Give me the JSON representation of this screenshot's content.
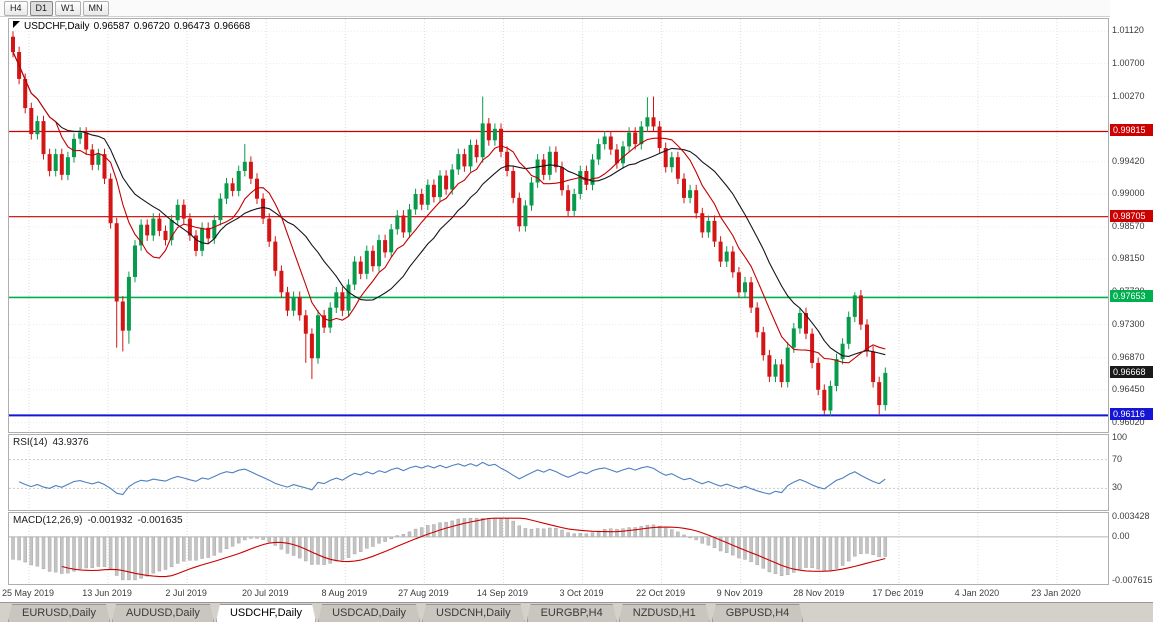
{
  "toolbar": {
    "timeframes": [
      {
        "label": "H4",
        "active": false
      },
      {
        "label": "D1",
        "active": true
      },
      {
        "label": "W1",
        "active": false
      },
      {
        "label": "MN",
        "active": false
      }
    ]
  },
  "price_chart": {
    "symbol": "USDCHF,Daily",
    "o": "0.96587",
    "h": "0.96720",
    "l": "0.96473",
    "c": "0.96668"
  },
  "price_axis": {
    "ticks": [
      "1.01120",
      "1.00700",
      "1.00270",
      "0.99420",
      "0.99000",
      "0.98570",
      "0.98150",
      "0.97730",
      "0.97300",
      "0.96870",
      "0.96450",
      "0.96020"
    ],
    "current_price": {
      "label": "0.96668",
      "price": 0.96668,
      "color": "#1a1a1a"
    }
  },
  "levels": [
    {
      "label": "0.99815",
      "price": 0.99815,
      "color": "#cc0000",
      "width": 1.2
    },
    {
      "label": "0.98705",
      "price": 0.98705,
      "color": "#cc0000",
      "width": 1.2
    },
    {
      "label": "0.97653",
      "price": 0.97653,
      "color": "#00b050",
      "width": 1.6
    },
    {
      "label": "0.96116",
      "price": 0.96116,
      "color": "#1515d6",
      "width": 2
    }
  ],
  "x_axis": {
    "labels": [
      "25 May 2019",
      "13 Jun 2019",
      "2 Jul 2019",
      "20 Jul 2019",
      "8 Aug 2019",
      "27 Aug 2019",
      "14 Sep 2019",
      "3 Oct 2019",
      "22 Oct 2019",
      "9 Nov 2019",
      "28 Nov 2019",
      "17 Dec 2019",
      "4 Jan 2020",
      "23 Jan 2020"
    ]
  },
  "rsi": {
    "name": "RSI(14)",
    "value": "43.9376",
    "axis_labels": [
      {
        "text": "100",
        "level": 100
      },
      {
        "text": "70",
        "level": 70
      },
      {
        "text": "30",
        "level": 30
      }
    ],
    "levels": [
      70,
      30
    ],
    "color": "#4e7fc1"
  },
  "macd": {
    "name": "MACD(12,26,9)",
    "value_main": "-0.001932",
    "value_signal": "-0.001635",
    "axis_labels": [
      {
        "text": "0.003428",
        "value": 0.003428
      },
      {
        "text": "0.00",
        "value": 0.0
      },
      {
        "text": "-0.007615",
        "value": -0.007615
      }
    ],
    "range": [
      -0.007615,
      0.003428
    ],
    "bar_color": "#c4c4c4",
    "bar_stroke": "#a9a9a9",
    "signal_color": "#cc0000"
  },
  "tabs": [
    {
      "label": "EURUSD,Daily",
      "active": false
    },
    {
      "label": "AUDUSD,Daily",
      "active": false
    },
    {
      "label": "USDCHF,Daily",
      "active": true
    },
    {
      "label": "USDCAD,Daily",
      "active": false
    },
    {
      "label": "USDCNH,Daily",
      "active": false
    },
    {
      "label": "EURGBP,H4",
      "active": false
    },
    {
      "label": "NZDUSD,H1",
      "active": false
    },
    {
      "label": "GBPUSD,H4",
      "active": false
    }
  ],
  "chart_data": {
    "type": "candlestick",
    "symbol": "USDCHF",
    "timeframe": "Daily",
    "title": "USDCHF,Daily",
    "ohlc_current": {
      "open": 0.96587,
      "high": 0.9672,
      "low": 0.96473,
      "close": 0.96668
    },
    "ylim": [
      0.959,
      1.0128
    ],
    "x_dates_shown": [
      "25 May 2019",
      "13 Jun 2019",
      "2 Jul 2019",
      "20 Jul 2019",
      "8 Aug 2019",
      "27 Aug 2019",
      "14 Sep 2019",
      "3 Oct 2019",
      "22 Oct 2019",
      "9 Nov 2019",
      "28 Nov 2019",
      "17 Dec 2019",
      "4 Jan 2020",
      "23 Jan 2020"
    ],
    "first_open": 1.0105,
    "default_wick": 0.0007,
    "closes": [
      1.0085,
      1.005,
      1.0012,
      0.9978,
      0.9995,
      0.9952,
      0.993,
      0.9952,
      0.9925,
      0.9948,
      0.9972,
      0.998,
      0.9958,
      0.9938,
      0.9952,
      0.992,
      0.9862,
      0.976,
      0.9722,
      0.9792,
      0.9833,
      0.986,
      0.9846,
      0.9868,
      0.9852,
      0.984,
      0.9866,
      0.9886,
      0.9868,
      0.9846,
      0.9826,
      0.9856,
      0.9842,
      0.9866,
      0.9894,
      0.9914,
      0.9904,
      0.993,
      0.9942,
      0.992,
      0.9894,
      0.9868,
      0.9838,
      0.98,
      0.9772,
      0.9748,
      0.9766,
      0.9742,
      0.9718,
      0.9686,
      0.9742,
      0.9726,
      0.9752,
      0.9772,
      0.9748,
      0.9782,
      0.9812,
      0.9796,
      0.9826,
      0.9806,
      0.984,
      0.9824,
      0.9854,
      0.9872,
      0.985,
      0.988,
      0.99,
      0.9886,
      0.9912,
      0.9896,
      0.9924,
      0.9906,
      0.9932,
      0.9952,
      0.9936,
      0.9964,
      0.9948,
      0.9992,
      0.997,
      0.9985,
      0.9955,
      0.993,
      0.9895,
      0.9858,
      0.9885,
      0.9915,
      0.9945,
      0.9925,
      0.9955,
      0.9935,
      0.9905,
      0.9878,
      0.99,
      0.993,
      0.9912,
      0.9945,
      0.9965,
      0.9975,
      0.9958,
      0.994,
      0.9962,
      0.998,
      0.9965,
      0.9988,
      1.0,
      0.9988,
      0.996,
      0.9935,
      0.9948,
      0.992,
      0.9895,
      0.9905,
      0.9875,
      0.985,
      0.9865,
      0.9838,
      0.9812,
      0.9825,
      0.9798,
      0.9772,
      0.9785,
      0.9752,
      0.972,
      0.969,
      0.9662,
      0.9678,
      0.9655,
      0.97,
      0.9725,
      0.9745,
      0.9718,
      0.968,
      0.9645,
      0.9618,
      0.965,
      0.9685,
      0.9705,
      0.974,
      0.9768,
      0.973,
      0.9695,
      0.9655,
      0.9625,
      0.9667
    ],
    "extremes": {
      "0": {
        "h": 1.0112
      },
      "17": {
        "l": 0.97
      },
      "18": {
        "l": 0.9695
      },
      "19": {
        "l": 0.9705
      },
      "38": {
        "h": 0.9965
      },
      "48": {
        "l": 0.968
      },
      "49": {
        "l": 0.9659
      },
      "77": {
        "h": 1.0027
      },
      "104": {
        "h": 1.0026
      },
      "105": {
        "h": 1.0027
      },
      "133": {
        "l": 0.9613
      },
      "138": {
        "h": 0.9772
      },
      "142": {
        "l": 0.9613
      }
    },
    "bull_color": "#089b4c",
    "bear_color": "#d41515",
    "ma_fast": {
      "period": 8,
      "color": "#c40000"
    },
    "ma_slow": {
      "period": 16,
      "color": "#15151f"
    },
    "grid_color": "#dcdcdc"
  }
}
